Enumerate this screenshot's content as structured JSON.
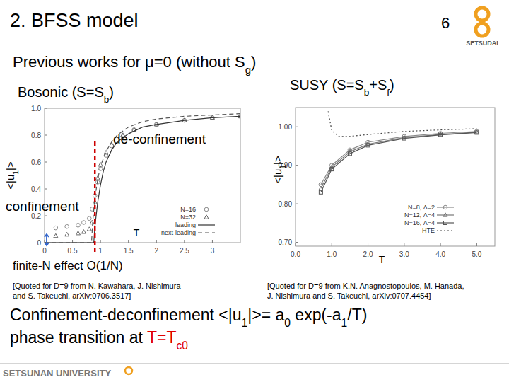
{
  "slide": {
    "title": "2. BFSS model",
    "page": "6",
    "logo": "SETSUDAI",
    "heading": [
      {
        "t": "Previous works for μ=0 (without S"
      },
      {
        "t": "g",
        "sub": true
      },
      {
        "t": ")"
      }
    ],
    "left_label": [
      {
        "t": "Bosonic (S=S"
      },
      {
        "t": "b",
        "sub": true
      },
      {
        "t": ")"
      }
    ],
    "right_label": [
      {
        "t": "SUSY (S=S"
      },
      {
        "t": "b",
        "sub": true
      },
      {
        "t": "+S"
      },
      {
        "t": "f",
        "sub": true
      },
      {
        "t": ")"
      }
    ],
    "left_citation": [
      "[Quoted for D=9 from N. Kawahara, J. Nishimura",
      "and S. Takeuchi, arXiv:0706.3517]"
    ],
    "right_citation": [
      "[Quoted for D=9 from K.N. Anagnostopoulos, M. Hanada,",
      "J. Nishimura and S. Takeuchi, arXiv:0707.4454]"
    ],
    "conclusion_line1": [
      {
        "t": "Confinement-deconfinement   <|u"
      },
      {
        "t": "1",
        "sub": true
      },
      {
        "t": "|>= a"
      },
      {
        "t": "0",
        "sub": true
      },
      {
        "t": " exp(-a"
      },
      {
        "t": "1",
        "sub": true
      },
      {
        "t": "/T)"
      }
    ],
    "conclusion_line2": [
      {
        "t": "phase transition at "
      },
      {
        "t": "T=T",
        "color": "#e00000"
      },
      {
        "t": "c0",
        "sub": true,
        "color": "#e00000"
      }
    ],
    "footer": "SETSUNAN UNIVERSITY"
  },
  "chart_data": [
    {
      "type": "line",
      "xlabel": [
        {
          "t": "T"
        }
      ],
      "ylabel": [
        {
          "t": "<|u"
        },
        {
          "t": "1",
          "sub": true
        },
        {
          "t": "|>"
        }
      ],
      "xlim": [
        0,
        3.5
      ],
      "ylim": [
        0,
        1
      ],
      "xticks": [
        0,
        0.5,
        1,
        1.5,
        2,
        2.5,
        3
      ],
      "yticks": [
        0,
        0.2,
        0.4,
        0.6,
        0.8,
        {
          "value": 1,
          "label": "1.0"
        }
      ],
      "critical_T": 0.9,
      "annotations": [
        "de-confinement",
        "confinement",
        "finite-N effect O(1/N)"
      ],
      "legend": "lower right",
      "series": [
        {
          "name": "N=16",
          "type": "scatter",
          "marker": "circle",
          "line_style": "none",
          "color": "#8a8a8a",
          "x": [
            0.2,
            0.4,
            0.6,
            0.7,
            0.8,
            0.85,
            0.9,
            0.95,
            1.0,
            1.1,
            1.2,
            1.4,
            1.6,
            2.0,
            2.5,
            3.0,
            3.5
          ],
          "values": [
            0.11,
            0.12,
            0.13,
            0.15,
            0.18,
            0.25,
            0.35,
            0.45,
            0.55,
            0.65,
            0.72,
            0.79,
            0.84,
            0.88,
            0.91,
            0.93,
            0.94
          ]
        },
        {
          "name": "N=32",
          "type": "scatter",
          "marker": "triangle",
          "line_style": "none",
          "color": "#666666",
          "x": [
            0.2,
            0.4,
            0.6,
            0.7,
            0.8,
            0.85,
            0.9,
            0.95,
            1.0,
            1.1,
            1.2,
            1.4,
            1.6,
            2.0,
            2.5,
            3.0,
            3.5
          ],
          "values": [
            0.05,
            0.06,
            0.07,
            0.08,
            0.1,
            0.15,
            0.3,
            0.48,
            0.58,
            0.67,
            0.73,
            0.8,
            0.84,
            0.88,
            0.91,
            0.93,
            0.94
          ]
        },
        {
          "name": "leading",
          "type": "line",
          "marker": "none",
          "line_style": "solid",
          "color": "#333333",
          "x": [
            0,
            0.88,
            0.9,
            0.95,
            1.0,
            1.05,
            1.1,
            1.2,
            1.3,
            1.5,
            1.75,
            2.0,
            2.5,
            3.0,
            3.5
          ],
          "values": [
            0,
            0,
            0.12,
            0.3,
            0.43,
            0.53,
            0.6,
            0.69,
            0.75,
            0.81,
            0.86,
            0.88,
            0.91,
            0.93,
            0.94
          ]
        },
        {
          "name": "next-leading",
          "type": "line",
          "marker": "none",
          "line_style": "dashed",
          "color": "#555555",
          "x": [
            0,
            0.84,
            0.86,
            0.9,
            0.95,
            1.0,
            1.1,
            1.2,
            1.3,
            1.5,
            1.75,
            2.0,
            2.5,
            3.0,
            3.5
          ],
          "values": [
            0,
            0,
            0.15,
            0.33,
            0.47,
            0.57,
            0.68,
            0.75,
            0.8,
            0.86,
            0.9,
            0.92,
            0.94,
            0.95,
            0.96
          ]
        }
      ]
    },
    {
      "type": "line",
      "xlabel": [
        {
          "t": "T"
        }
      ],
      "ylabel": [
        {
          "t": "<|u"
        },
        {
          "t": "1",
          "sub": true
        },
        {
          "t": "|>"
        }
      ],
      "xlim": [
        0,
        5.5
      ],
      "ylim": [
        0.69,
        1.05
      ],
      "xticks": [
        {
          "value": 0,
          "label": "0.0"
        },
        {
          "value": 1,
          "label": "1.0"
        },
        {
          "value": 2,
          "label": "2.0"
        },
        {
          "value": 3,
          "label": "3.0"
        },
        {
          "value": 4,
          "label": "4.0"
        },
        {
          "value": 5,
          "label": "5.0"
        }
      ],
      "yticks": [
        {
          "value": 0.7,
          "label": "0.70"
        },
        {
          "value": 0.8,
          "label": "0.80"
        },
        {
          "value": 0.9,
          "label": "0.90"
        },
        {
          "value": 1,
          "label": "1.00"
        }
      ],
      "legend": "lower right",
      "series": [
        {
          "name": "N=8, Λ=2",
          "type": "line",
          "marker": "circle",
          "line_style": "solid",
          "color": "#8a8a8a",
          "x": [
            0.7,
            1.0,
            1.5,
            2.0,
            3.0,
            4.0,
            5.0
          ],
          "values": [
            0.85,
            0.9,
            0.94,
            0.96,
            0.975,
            0.983,
            0.988
          ]
        },
        {
          "name": "N=12, Λ=4",
          "type": "line",
          "marker": "triangle",
          "line_style": "solid",
          "color": "#777777",
          "x": [
            0.7,
            1.0,
            1.5,
            2.0,
            3.0,
            4.0,
            5.0
          ],
          "values": [
            0.84,
            0.895,
            0.935,
            0.955,
            0.972,
            0.98,
            0.986
          ]
        },
        {
          "name": "N=16, Λ=4",
          "type": "line",
          "marker": "square",
          "line_style": "solid",
          "color": "#555555",
          "x": [
            0.7,
            1.0,
            1.5,
            2.0,
            3.0,
            4.0,
            5.0
          ],
          "values": [
            0.83,
            0.89,
            0.93,
            0.952,
            0.97,
            0.979,
            0.985
          ]
        },
        {
          "name": "HTE",
          "type": "line",
          "marker": "none",
          "line_style": "dotted",
          "color": "#444444",
          "x": [
            0.9,
            1.0,
            1.2,
            1.5,
            2.0,
            3.0,
            4.0,
            5.0
          ],
          "values": [
            1.04,
            0.99,
            0.975,
            0.975,
            0.98,
            0.988,
            0.992,
            0.995
          ]
        }
      ]
    }
  ]
}
